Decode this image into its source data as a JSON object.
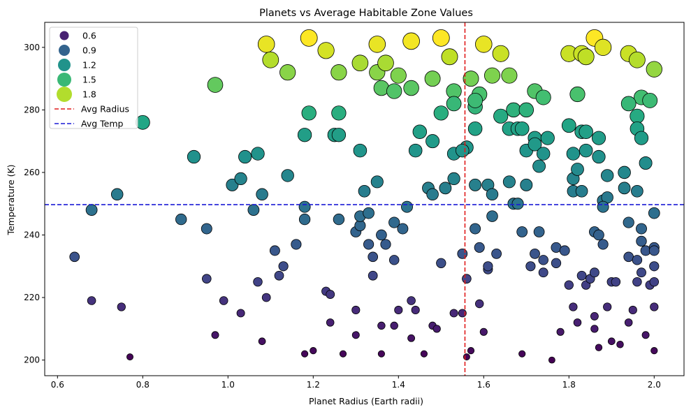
{
  "chart_data": {
    "type": "scatter",
    "title": "Planets vs Average Habitable Zone Values",
    "xlabel": "Planet Radius (Earth radii)",
    "ylabel": "Temperature (K)",
    "xlim": [
      0.57,
      2.07
    ],
    "ylim": [
      195,
      308
    ],
    "xticks": [
      "0.6",
      "0.8",
      "1.0",
      "1.2",
      "1.4",
      "1.6",
      "1.8",
      "2.0"
    ],
    "yticks": [
      "200",
      "220",
      "240",
      "260",
      "280",
      "300"
    ],
    "grid": false,
    "legend_position": "upper-left",
    "colormap": "viridis",
    "size_legend": [
      {
        "label": "0.6",
        "value": 0.6
      },
      {
        "label": "0.9",
        "value": 0.9
      },
      {
        "label": "1.2",
        "value": 1.2
      },
      {
        "label": "1.5",
        "value": 1.5
      },
      {
        "label": "1.8",
        "value": 1.8
      }
    ],
    "reference_lines": [
      {
        "label": "Avg Radius",
        "axis": "x",
        "value": 1.556,
        "color": "#e01b1b"
      },
      {
        "label": "Avg Temp",
        "axis": "y",
        "value": 249.7,
        "color": "#1a1ad6"
      }
    ],
    "points": [
      [
        1.09,
        301
      ],
      [
        1.19,
        303
      ],
      [
        1.23,
        299
      ],
      [
        1.35,
        301
      ],
      [
        1.43,
        302
      ],
      [
        1.5,
        303
      ],
      [
        1.52,
        297
      ],
      [
        1.6,
        301
      ],
      [
        1.64,
        298
      ],
      [
        1.8,
        298
      ],
      [
        1.83,
        298
      ],
      [
        1.84,
        297
      ],
      [
        1.86,
        303
      ],
      [
        1.88,
        300
      ],
      [
        1.94,
        298
      ],
      [
        1.96,
        296
      ],
      [
        2.0,
        293
      ],
      [
        1.1,
        296
      ],
      [
        1.14,
        292
      ],
      [
        1.26,
        292
      ],
      [
        1.31,
        295
      ],
      [
        1.35,
        292
      ],
      [
        1.37,
        295
      ],
      [
        1.4,
        291
      ],
      [
        1.48,
        290
      ],
      [
        1.57,
        290
      ],
      [
        1.62,
        291
      ],
      [
        1.66,
        291
      ],
      [
        0.97,
        288
      ],
      [
        1.36,
        287
      ],
      [
        1.39,
        286
      ],
      [
        1.43,
        287
      ],
      [
        1.53,
        286
      ],
      [
        1.72,
        286
      ],
      [
        1.74,
        284
      ],
      [
        1.82,
        285
      ],
      [
        1.97,
        284
      ],
      [
        1.59,
        285
      ],
      [
        0.8,
        276
      ],
      [
        1.19,
        279
      ],
      [
        1.26,
        279
      ],
      [
        1.5,
        279
      ],
      [
        1.53,
        282
      ],
      [
        1.58,
        281
      ],
      [
        1.58,
        283
      ],
      [
        1.64,
        278
      ],
      [
        1.67,
        280
      ],
      [
        1.7,
        280
      ],
      [
        1.8,
        275
      ],
      [
        1.94,
        282
      ],
      [
        1.96,
        278
      ],
      [
        1.99,
        283
      ],
      [
        1.18,
        272
      ],
      [
        1.25,
        272
      ],
      [
        1.26,
        272
      ],
      [
        1.45,
        273
      ],
      [
        1.48,
        270
      ],
      [
        1.56,
        268
      ],
      [
        1.58,
        274
      ],
      [
        1.66,
        274
      ],
      [
        1.68,
        274
      ],
      [
        1.69,
        274
      ],
      [
        1.72,
        271
      ],
      [
        1.75,
        271
      ],
      [
        1.83,
        273
      ],
      [
        1.84,
        273
      ],
      [
        1.87,
        271
      ],
      [
        1.96,
        274
      ],
      [
        1.97,
        271
      ],
      [
        0.92,
        265
      ],
      [
        1.04,
        265
      ],
      [
        1.07,
        266
      ],
      [
        1.31,
        267
      ],
      [
        1.44,
        267
      ],
      [
        1.53,
        266
      ],
      [
        1.55,
        267
      ],
      [
        1.7,
        267
      ],
      [
        1.72,
        269
      ],
      [
        1.74,
        266
      ],
      [
        1.81,
        266
      ],
      [
        1.84,
        267
      ],
      [
        1.87,
        265
      ],
      [
        1.73,
        262
      ],
      [
        1.98,
        263
      ],
      [
        0.74,
        253
      ],
      [
        1.01,
        256
      ],
      [
        1.03,
        258
      ],
      [
        1.08,
        253
      ],
      [
        1.14,
        259
      ],
      [
        1.32,
        254
      ],
      [
        1.35,
        257
      ],
      [
        1.47,
        255
      ],
      [
        1.48,
        253
      ],
      [
        1.51,
        255
      ],
      [
        1.53,
        258
      ],
      [
        1.58,
        256
      ],
      [
        1.61,
        256
      ],
      [
        1.62,
        253
      ],
      [
        1.66,
        257
      ],
      [
        1.7,
        256
      ],
      [
        1.81,
        258
      ],
      [
        1.81,
        254
      ],
      [
        1.82,
        261
      ],
      [
        1.83,
        254
      ],
      [
        1.88,
        251
      ],
      [
        1.89,
        252
      ],
      [
        1.89,
        259
      ],
      [
        1.93,
        260
      ],
      [
        1.93,
        255
      ],
      [
        1.96,
        254
      ],
      [
        0.68,
        248
      ],
      [
        0.89,
        245
      ],
      [
        0.95,
        242
      ],
      [
        1.06,
        248
      ],
      [
        1.18,
        249
      ],
      [
        1.18,
        245
      ],
      [
        1.26,
        245
      ],
      [
        1.3,
        241
      ],
      [
        1.31,
        243
      ],
      [
        1.31,
        246
      ],
      [
        1.33,
        247
      ],
      [
        1.39,
        244
      ],
      [
        1.41,
        242
      ],
      [
        1.42,
        249
      ],
      [
        1.58,
        242
      ],
      [
        1.62,
        246
      ],
      [
        1.67,
        250
      ],
      [
        1.68,
        250
      ],
      [
        1.88,
        249
      ],
      [
        1.94,
        244
      ],
      [
        1.97,
        242
      ],
      [
        2.0,
        247
      ],
      [
        0.64,
        233
      ],
      [
        0.95,
        226
      ],
      [
        1.11,
        235
      ],
      [
        1.13,
        230
      ],
      [
        1.16,
        237
      ],
      [
        1.33,
        237
      ],
      [
        1.34,
        233
      ],
      [
        1.36,
        240
      ],
      [
        1.37,
        237
      ],
      [
        1.39,
        232
      ],
      [
        1.5,
        231
      ],
      [
        1.55,
        234
      ],
      [
        1.59,
        236
      ],
      [
        1.61,
        229
      ],
      [
        1.61,
        230
      ],
      [
        1.63,
        234
      ],
      [
        1.69,
        241
      ],
      [
        1.72,
        234
      ],
      [
        1.73,
        241
      ],
      [
        1.74,
        232
      ],
      [
        1.77,
        236
      ],
      [
        1.79,
        235
      ],
      [
        1.86,
        241
      ],
      [
        1.87,
        240
      ],
      [
        1.88,
        237
      ],
      [
        1.94,
        233
      ],
      [
        1.96,
        232
      ],
      [
        1.97,
        238
      ],
      [
        1.98,
        235
      ],
      [
        2.0,
        236
      ],
      [
        2.0,
        235
      ],
      [
        2.0,
        230
      ],
      [
        1.34,
        227
      ],
      [
        1.07,
        225
      ],
      [
        1.12,
        227
      ],
      [
        1.71,
        230
      ],
      [
        1.74,
        228
      ],
      [
        1.77,
        231
      ],
      [
        1.97,
        228
      ],
      [
        0.68,
        219
      ],
      [
        0.75,
        217
      ],
      [
        0.99,
        219
      ],
      [
        1.03,
        215
      ],
      [
        1.09,
        220
      ],
      [
        1.23,
        222
      ],
      [
        1.24,
        221
      ],
      [
        1.3,
        216
      ],
      [
        1.4,
        216
      ],
      [
        1.43,
        219
      ],
      [
        1.44,
        216
      ],
      [
        1.53,
        215
      ],
      [
        1.55,
        215
      ],
      [
        1.56,
        226
      ],
      [
        1.59,
        218
      ],
      [
        1.8,
        224
      ],
      [
        1.81,
        217
      ],
      [
        1.83,
        227
      ],
      [
        1.84,
        224
      ],
      [
        1.85,
        226
      ],
      [
        1.86,
        228
      ],
      [
        1.86,
        214
      ],
      [
        1.89,
        217
      ],
      [
        1.9,
        225
      ],
      [
        1.91,
        225
      ],
      [
        1.94,
        212
      ],
      [
        1.95,
        216
      ],
      [
        1.96,
        225
      ],
      [
        1.99,
        224
      ],
      [
        2.0,
        225
      ],
      [
        2.0,
        217
      ],
      [
        1.82,
        212
      ],
      [
        0.97,
        208
      ],
      [
        1.08,
        206
      ],
      [
        1.24,
        212
      ],
      [
        1.3,
        208
      ],
      [
        1.36,
        211
      ],
      [
        1.39,
        211
      ],
      [
        1.43,
        207
      ],
      [
        1.48,
        211
      ],
      [
        1.49,
        210
      ],
      [
        1.6,
        209
      ],
      [
        1.78,
        209
      ],
      [
        1.86,
        210
      ],
      [
        1.87,
        204
      ],
      [
        1.9,
        206
      ],
      [
        1.92,
        205
      ],
      [
        1.98,
        208
      ],
      [
        2.0,
        203
      ],
      [
        0.77,
        201
      ],
      [
        1.18,
        202
      ],
      [
        1.2,
        203
      ],
      [
        1.27,
        202
      ],
      [
        1.36,
        202
      ],
      [
        1.46,
        202
      ],
      [
        1.56,
        201
      ],
      [
        1.57,
        203
      ],
      [
        1.69,
        202
      ],
      [
        1.76,
        200
      ]
    ]
  }
}
